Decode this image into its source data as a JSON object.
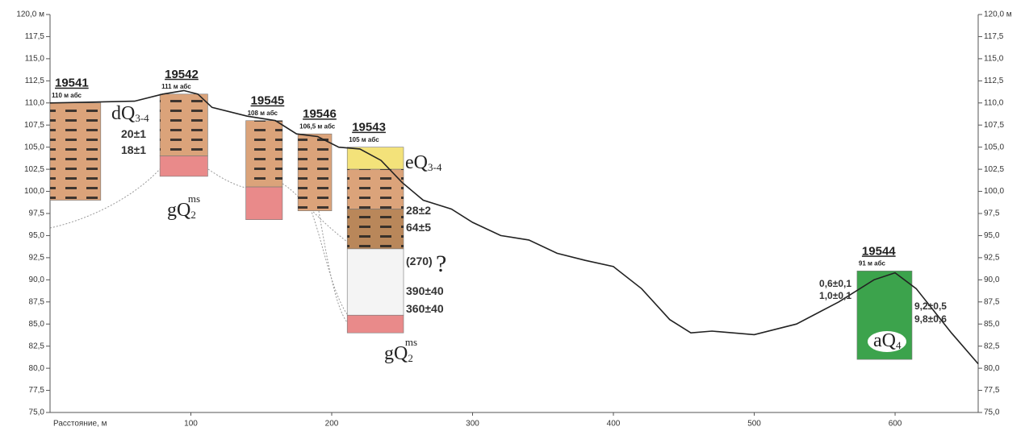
{
  "chart_data": {
    "type": "profile",
    "x_label": "Расстояние, м",
    "xlim": [
      0,
      659
    ],
    "xticks": [
      100,
      200,
      300,
      400,
      500,
      600
    ],
    "ylim": [
      75,
      120
    ],
    "yticks": [
      {
        "value": 75,
        "label": "75,0"
      },
      {
        "value": 77.5,
        "label": "77,5"
      },
      {
        "value": 80,
        "label": "80,0"
      },
      {
        "value": 82.5,
        "label": "82,5"
      },
      {
        "value": 85,
        "label": "85,0"
      },
      {
        "value": 87.5,
        "label": "87,5"
      },
      {
        "value": 90,
        "label": "90,0"
      },
      {
        "value": 92.5,
        "label": "92,5"
      },
      {
        "value": 95,
        "label": "95,0"
      },
      {
        "value": 97.5,
        "label": "97,5"
      },
      {
        "value": 100,
        "label": "100,0"
      },
      {
        "value": 102.5,
        "label": "102,5"
      },
      {
        "value": 105,
        "label": "105,0"
      },
      {
        "value": 107.5,
        "label": "107,5"
      },
      {
        "value": 110,
        "label": "110,0"
      },
      {
        "value": 112.5,
        "label": "112,5"
      },
      {
        "value": 115,
        "label": "115,0"
      },
      {
        "value": 117.5,
        "label": "117,5"
      },
      {
        "value": 120,
        "label": "120,0 м"
      }
    ],
    "color": "#222222",
    "x": [
      0,
      60,
      80,
      95,
      105,
      115,
      140,
      160,
      175,
      190,
      205,
      220,
      235,
      250,
      265,
      285,
      300,
      320,
      340,
      360,
      380,
      400,
      420,
      440,
      455,
      470,
      500,
      530,
      560,
      585,
      600,
      615,
      640,
      659
    ],
    "values": [
      110.0,
      110.2,
      111.0,
      111.4,
      111.0,
      109.5,
      108.5,
      108.0,
      106.5,
      106.2,
      105.0,
      104.8,
      103.5,
      101.0,
      99.0,
      98.0,
      96.5,
      95.0,
      94.5,
      93.0,
      92.2,
      91.5,
      89.0,
      85.5,
      84.0,
      84.2,
      83.8,
      85.0,
      87.5,
      90.0,
      90.8,
      89.0,
      84.0,
      80.5
    ],
    "boreholes": [
      {
        "label": "19541",
        "elevation_label": "110 м абс",
        "x": [
          0,
          36
        ],
        "layers": [
          {
            "top": 110,
            "bottom": 99,
            "color": "#dba37a"
          }
        ]
      },
      {
        "label": "19542",
        "elevation_label": "111 м абс",
        "x": [
          78,
          112
        ],
        "layers": [
          {
            "top": 111,
            "bottom": 104,
            "color": "#dba37a"
          },
          {
            "top": 104,
            "bottom": 101.7,
            "color": "#e98a8a"
          }
        ]
      },
      {
        "label": "19545",
        "elevation_label": "108 м абс",
        "x": [
          139,
          165
        ],
        "layers": [
          {
            "top": 108,
            "bottom": 100.5,
            "color": "#dba37a"
          },
          {
            "top": 100.5,
            "bottom": 96.8,
            "color": "#e98a8a"
          }
        ]
      },
      {
        "label": "19546",
        "elevation_label": "106,5 м абс",
        "x": [
          176,
          200
        ],
        "layers": [
          {
            "top": 106.5,
            "bottom": 97.8,
            "color": "#dba37a"
          }
        ]
      },
      {
        "label": "19543",
        "elevation_label": "105 м абс",
        "x": [
          211,
          251
        ],
        "layers": [
          {
            "top": 105,
            "bottom": 102.5,
            "color": "#f3e27a"
          },
          {
            "top": 102.5,
            "bottom": 98,
            "color": "#dba37a"
          },
          {
            "top": 98,
            "bottom": 93.5,
            "color": "#b9875a"
          },
          {
            "top": 93.5,
            "bottom": 86,
            "color": "#f4f4f4"
          },
          {
            "top": 86,
            "bottom": 84,
            "color": "#e98a8a"
          }
        ]
      },
      {
        "label": "19544",
        "elevation_label": "91 м абс",
        "x": [
          573,
          612
        ],
        "layers": [
          {
            "top": 91,
            "bottom": 81,
            "color": "#3ca34c"
          }
        ]
      }
    ],
    "annotations": [
      {
        "text": "dQ",
        "sub": "3-4",
        "color": "#222222"
      },
      {
        "text": "20±1",
        "color": "#b3262c"
      },
      {
        "text": "18±1",
        "color": "#b3262c"
      },
      {
        "text": "gQ",
        "sub": "2",
        "sup": "ms",
        "color": "#222222"
      },
      {
        "text": "eQ",
        "sub": "3-4",
        "color": "#222222"
      },
      {
        "text": "28±2",
        "color": "#b3262c"
      },
      {
        "text": "64±5",
        "color": "#b3262c"
      },
      {
        "text": "(270)",
        "color": "#c47a3a"
      },
      {
        "text": "?",
        "color": "#222222"
      },
      {
        "text": "390±40",
        "color": "#c47a3a"
      },
      {
        "text": "360±40",
        "color": "#c47a3a"
      },
      {
        "text": "gQ",
        "sub": "2",
        "sup": "ms",
        "color": "#222222"
      },
      {
        "text": "0,6±0,1",
        "color": "#b3262c"
      },
      {
        "text": "1,0±0,1",
        "color": "#b3262c"
      },
      {
        "text": "9,2±0,5",
        "color": "#b3262c"
      },
      {
        "text": "9,8±0,6",
        "color": "#b3262c"
      },
      {
        "text": "aQ",
        "sub": "4",
        "color": "#222222"
      }
    ]
  }
}
